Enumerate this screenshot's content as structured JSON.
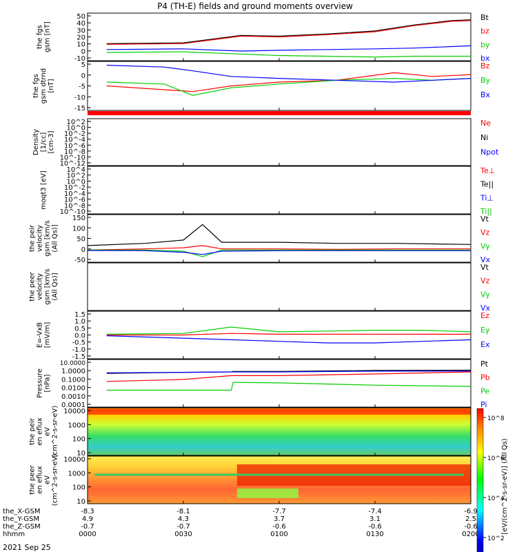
{
  "figure": {
    "title": "P4 (TH-E) fields and ground moments overview",
    "date": "2021 Sep 25",
    "colorbar_label": "[eV/(cm^2-s-sr-eV)] (All Qs)",
    "colorbar_ticks": [
      "10^8",
      "10^6",
      "10^4",
      "10^2"
    ],
    "colors": {
      "black": "#000000",
      "red": "#ff0000",
      "green": "#00cc00",
      "blue": "#0000ff"
    }
  },
  "x_axis": {
    "rows": [
      {
        "label": "the_X-GSM",
        "values": [
          "-8.3",
          "-8.1",
          "-7.7",
          "-7.4",
          "-6.9"
        ]
      },
      {
        "label": "the_Y-GSM",
        "values": [
          "4.9",
          "4.3",
          "3.7",
          "3.1",
          "2.5"
        ]
      },
      {
        "label": "the_Z-GSM",
        "values": [
          "-0.7",
          "-0.7",
          "-0.6",
          "-0.6",
          "-0.6"
        ]
      },
      {
        "label": "hhmm",
        "values": [
          "0000",
          "0030",
          "0100",
          "0130",
          "0200"
        ]
      }
    ]
  },
  "chart_data": [
    {
      "type": "line",
      "ylabel": "the fgs gsm [nT]",
      "yticks": [
        "50",
        "40",
        "30",
        "20",
        "10",
        "0",
        "-10"
      ],
      "ylim": [
        -12,
        52
      ],
      "legend": [
        "Bt",
        "bz",
        "by",
        "bx"
      ],
      "x_hours": [
        0.1,
        0.5,
        0.8,
        1.0,
        1.25,
        1.5,
        1.7,
        1.9,
        2.0
      ],
      "series": [
        {
          "name": "Bt",
          "color": "#000000",
          "values": [
            11,
            12,
            22,
            21,
            24,
            28,
            36,
            42,
            43
          ]
        },
        {
          "name": "bz",
          "color": "#ff0000",
          "values": [
            10,
            11,
            21,
            20,
            23,
            27,
            35,
            41,
            42
          ]
        },
        {
          "name": "by",
          "color": "#00cc00",
          "values": [
            -1,
            0,
            -3,
            -5,
            -6,
            -7,
            -6,
            -6,
            -6
          ]
        },
        {
          "name": "bx",
          "color": "#0000ff",
          "values": [
            3,
            4,
            1,
            2,
            3,
            4,
            5,
            7,
            8
          ]
        }
      ]
    },
    {
      "type": "line",
      "ylabel": "the fgs gsm dtrnd [nT]",
      "yticks": [
        "5",
        "0",
        "-5",
        "-10",
        "-15"
      ],
      "ylim": [
        -18,
        8
      ],
      "legend": [
        "Bz",
        "By",
        "Bx"
      ],
      "x_hours": [
        0.1,
        0.4,
        0.55,
        0.75,
        1.0,
        1.3,
        1.6,
        1.8,
        2.0
      ],
      "series": [
        {
          "name": "Bz",
          "color": "#ff0000",
          "values": [
            -5,
            -7,
            -8,
            -5,
            -3,
            -2,
            2,
            0,
            1
          ]
        },
        {
          "name": "By",
          "color": "#00cc00",
          "values": [
            -3,
            -4,
            -10,
            -6,
            -4,
            -2,
            -1,
            -2,
            -1
          ]
        },
        {
          "name": "Bx",
          "color": "#0000ff",
          "values": [
            6,
            5,
            3,
            0,
            -1,
            -2,
            -3,
            -2,
            -1
          ]
        }
      ]
    },
    {
      "type": "line",
      "ylabel": "Density [1/cc] [cm-3]",
      "yticks": [
        "10^2",
        "10^0",
        "10^-2",
        "10^-4",
        "10^-6",
        "10^-8",
        "10^-10",
        "10^-12"
      ],
      "legend": [
        "Ne",
        "Ni",
        "Npot"
      ]
    },
    {
      "type": "line",
      "ylabel": "moqt3 [eV]",
      "yticks": [
        "10^4",
        "10^2",
        "10^0",
        "10^-2",
        "10^-4",
        "10^-6",
        "10^-8",
        "10^-10"
      ],
      "legend": [
        "Te⊥",
        "Te||",
        "Ti⊥",
        "Ti||"
      ]
    },
    {
      "type": "line",
      "ylabel": "the peir velocity gsm [km/s (All Qs)]",
      "yticks": [
        "150",
        "100",
        "50",
        "0",
        "-50"
      ],
      "ylim": [
        -55,
        160
      ],
      "legend": [
        "Vt",
        "Vz",
        "Vy",
        "Vx"
      ],
      "x_hours": [
        0.0,
        0.3,
        0.5,
        0.6,
        0.7,
        1.0,
        1.3,
        1.6,
        2.0
      ],
      "series": [
        {
          "name": "Vt",
          "color": "#000000",
          "values": [
            20,
            30,
            45,
            115,
            35,
            35,
            30,
            30,
            25
          ]
        },
        {
          "name": "Vz",
          "color": "#ff0000",
          "values": [
            0,
            5,
            10,
            20,
            5,
            5,
            3,
            5,
            5
          ]
        },
        {
          "name": "Vy",
          "color": "#00cc00",
          "values": [
            0,
            0,
            -5,
            -30,
            0,
            0,
            0,
            0,
            0
          ]
        },
        {
          "name": "Vx",
          "color": "#0000ff",
          "values": [
            -2,
            -3,
            -10,
            -20,
            -5,
            -3,
            -3,
            -3,
            -3
          ]
        }
      ]
    },
    {
      "type": "line",
      "ylabel": "the peer velocity gsm [km/s (All Qs)]",
      "legend": [
        "Vt",
        "Vz",
        "Vy",
        "Vx"
      ]
    },
    {
      "type": "line",
      "ylabel": "E=-VxB [mV/m]",
      "yticks": [
        "1.5",
        "1.0",
        "0.5",
        "0.0",
        "-0.5",
        "-1.0",
        "-1.5"
      ],
      "ylim": [
        -1.5,
        1.5
      ],
      "legend": [
        "Ez",
        "Ey",
        "Ex"
      ],
      "x_hours": [
        0.1,
        0.5,
        0.75,
        1.0,
        1.25,
        1.5,
        1.75,
        2.0
      ],
      "series": [
        {
          "name": "Ez",
          "color": "#ff0000",
          "values": [
            0.0,
            0.0,
            0.1,
            0.05,
            0.05,
            0.05,
            0.05,
            0.05
          ]
        },
        {
          "name": "Ey",
          "color": "#00cc00",
          "values": [
            0.05,
            0.1,
            0.5,
            0.2,
            0.25,
            0.3,
            0.3,
            0.2
          ]
        },
        {
          "name": "Ex",
          "color": "#0000ff",
          "values": [
            -0.05,
            -0.2,
            -0.3,
            -0.4,
            -0.5,
            -0.5,
            -0.4,
            -0.3
          ]
        }
      ]
    },
    {
      "type": "line",
      "ylabel": "Pressure [nPa]",
      "yticks": [
        "10.0000",
        "1.0000",
        "0.1000",
        "0.0100",
        "0.0010",
        "0.0001"
      ],
      "log": true,
      "ylim": [
        0.0001,
        10
      ],
      "legend": [
        "Pt",
        "Pb",
        "Pe",
        "Pi"
      ],
      "x_hours": [
        0.1,
        0.5,
        0.75,
        0.76,
        1.0,
        1.5,
        2.0
      ],
      "series": [
        {
          "name": "Pt",
          "color": "#000000",
          "values": [
            0.35,
            0.45,
            0.5,
            0.55,
            0.55,
            0.7,
            0.75
          ]
        },
        {
          "name": "Pb",
          "color": "#ff0000",
          "values": [
            0.05,
            0.08,
            0.2,
            0.2,
            0.2,
            0.3,
            0.5
          ]
        },
        {
          "name": "Pe",
          "color": "#00cc00",
          "values": [
            0.006,
            0.006,
            0.006,
            0.04,
            0.035,
            0.02,
            0.015
          ]
        },
        {
          "name": "Pi",
          "color": "#0000ff",
          "values": [
            0.4,
            0.45,
            0.5,
            0.5,
            0.5,
            0.6,
            0.6
          ]
        }
      ]
    },
    {
      "type": "heatmap",
      "ylabel": "the peir en eflux eV (cm^2-s-sr-eV)",
      "yticks": [
        "10000",
        "1000",
        "100",
        "10"
      ]
    },
    {
      "type": "heatmap",
      "ylabel": "the peer en eflux eV (cm^2-s-sr-eV)",
      "yticks": [
        "10000",
        "1000",
        "100",
        "10"
      ]
    }
  ]
}
